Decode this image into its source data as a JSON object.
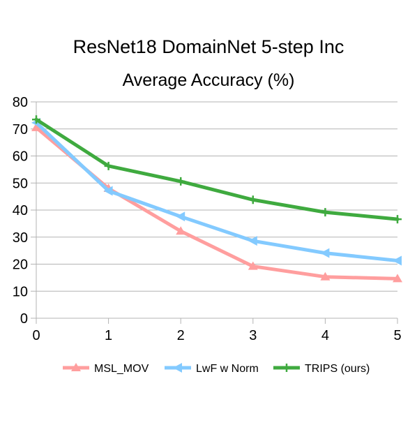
{
  "chart_data": {
    "type": "line",
    "title": "ResNet18 DomainNet 5-step Inc",
    "subtitle": "Average Accuracy (%)",
    "xlabel": "",
    "ylabel": "",
    "x": [
      0,
      1,
      2,
      3,
      4,
      5
    ],
    "xlim": [
      0,
      5
    ],
    "ylim": [
      0,
      80
    ],
    "yticks": [
      0,
      10,
      20,
      30,
      40,
      50,
      60,
      70,
      80
    ],
    "grid": "horizontal",
    "legend": "bottom",
    "series": [
      {
        "name": "MSL_MOV",
        "marker": "triangle-up",
        "color": "#ff9e9e",
        "values": [
          70.5,
          48.0,
          32.2,
          19.2,
          15.3,
          14.6
        ]
      },
      {
        "name": "LwF w Norm",
        "marker": "triangle-left",
        "color": "#83caff",
        "values": [
          72.3,
          47.1,
          37.6,
          28.6,
          24.1,
          21.3
        ]
      },
      {
        "name": "TRIPS (ours)",
        "marker": "plus",
        "color": "#3faa3f",
        "values": [
          73.5,
          56.3,
          50.6,
          43.8,
          39.2,
          36.6
        ]
      }
    ]
  }
}
